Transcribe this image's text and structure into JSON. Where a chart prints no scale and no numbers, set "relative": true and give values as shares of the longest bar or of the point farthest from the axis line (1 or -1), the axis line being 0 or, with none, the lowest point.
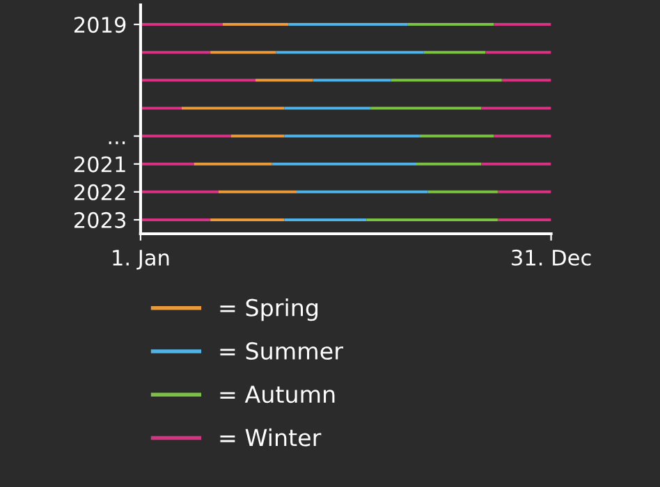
{
  "chart_data": {
    "type": "bar",
    "orientation": "horizontal",
    "stacked": true,
    "relative": true,
    "categories": [
      "2019",
      null,
      null,
      null,
      "...",
      "2021",
      "2022",
      "2023"
    ],
    "annotations": [
      "1. Jan",
      "31. Dec"
    ],
    "legend": "bottom",
    "series": [
      {
        "color": "#d63384",
        "values": [
          0.2,
          0.17,
          0.28,
          0.1,
          0.22,
          0.13,
          0.19,
          0.17
        ]
      },
      {
        "name": "= Spring",
        "color": "#e89a3c",
        "values": [
          0.16,
          0.16,
          0.14,
          0.25,
          0.13,
          0.19,
          0.19,
          0.18
        ]
      },
      {
        "name": "= Summer",
        "color": "#4fb3e8",
        "values": [
          0.29,
          0.36,
          0.19,
          0.21,
          0.33,
          0.35,
          0.32,
          0.2
        ]
      },
      {
        "name": "= Autumn",
        "color": "#7cc142",
        "values": [
          0.21,
          0.15,
          0.27,
          0.27,
          0.18,
          0.16,
          0.17,
          0.32
        ]
      },
      {
        "name": "= Winter",
        "color": "#d63384",
        "values": [
          0.14,
          0.16,
          0.12,
          0.17,
          0.14,
          0.17,
          0.13,
          0.13
        ]
      }
    ]
  }
}
